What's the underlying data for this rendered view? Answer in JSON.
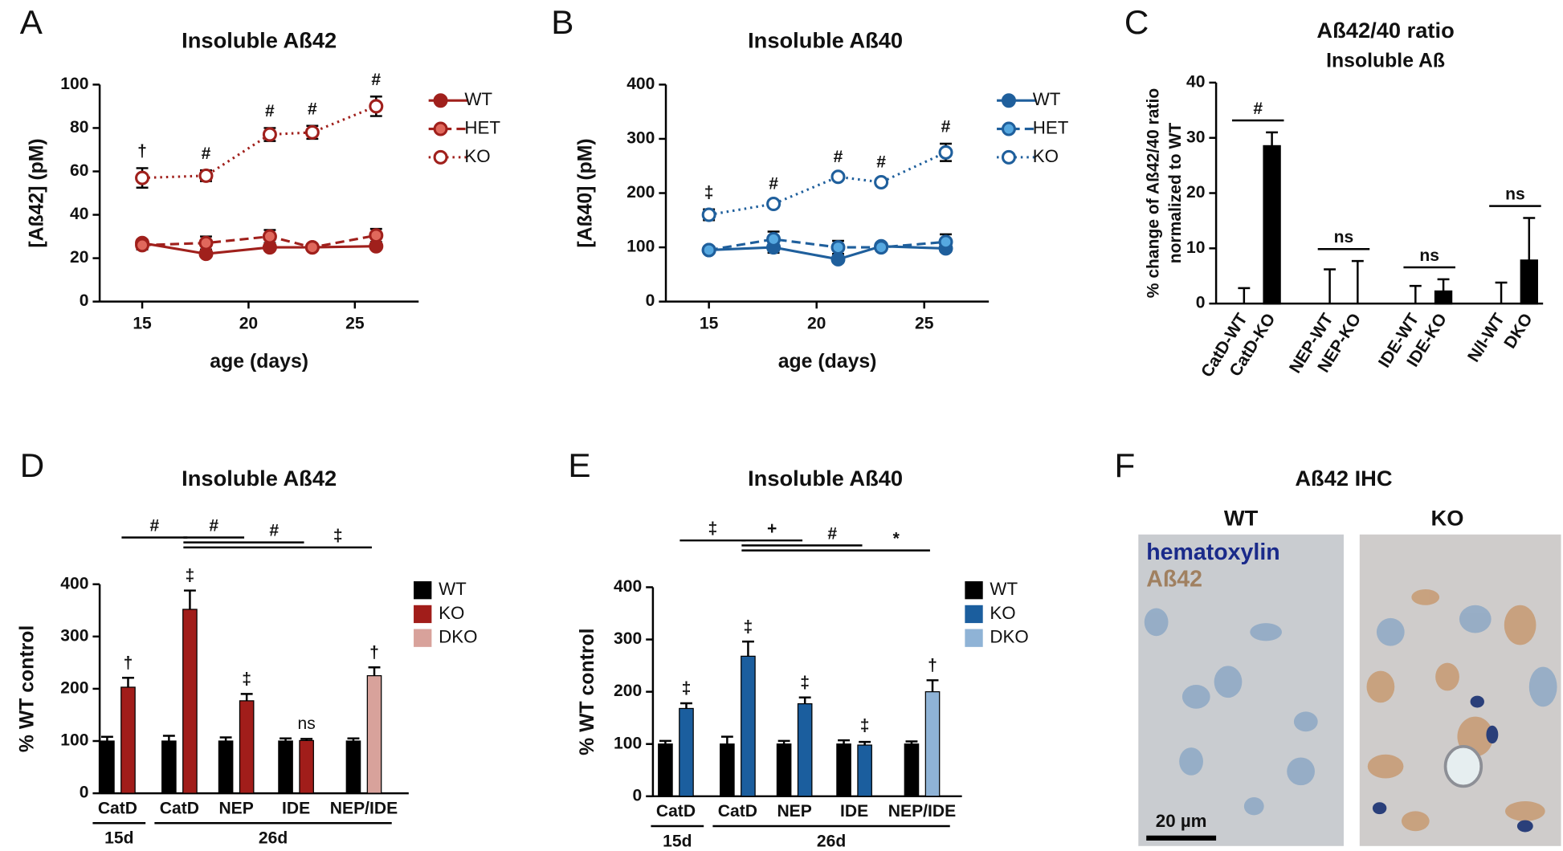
{
  "chart_data": [
    {
      "type": "line",
      "panel": "A",
      "title": "Insoluble Aß42",
      "xlabel": "age (days)",
      "ylabel": "[Aß42] (pM)",
      "x": [
        15,
        18,
        21,
        23,
        26
      ],
      "xlim": [
        13,
        28
      ],
      "xticks": [
        15,
        20,
        25
      ],
      "ylim": [
        0,
        100
      ],
      "yticks": [
        0,
        20,
        40,
        60,
        80,
        100
      ],
      "series": [
        {
          "name": "WT",
          "color": "#a0201c",
          "line_style": "solid",
          "marker_face": "#a0201c",
          "values": [
            27,
            22,
            25,
            25,
            25.5
          ],
          "errors": [
            1.5,
            1,
            1,
            1,
            1
          ]
        },
        {
          "name": "HET",
          "color": "#a0201c",
          "line_style": "dashed",
          "marker_face": "#e0685c",
          "values": [
            26,
            27,
            30,
            25,
            30.5
          ],
          "errors": [
            2,
            3,
            3,
            1.5,
            3
          ]
        },
        {
          "name": "KO",
          "color": "#a0201c",
          "line_style": "dotted",
          "marker_face": "#ffffff",
          "values": [
            57,
            58,
            77,
            78,
            90
          ],
          "errors": [
            4.5,
            2.5,
            3,
            3,
            4.5
          ],
          "point_labels": [
            "†",
            "#",
            "#",
            "#",
            "#"
          ]
        }
      ]
    },
    {
      "type": "line",
      "panel": "B",
      "title": "Insoluble Aß40",
      "xlabel": "age (days)",
      "ylabel": "[Aß40] (pM)",
      "x": [
        15,
        18,
        21,
        23,
        26
      ],
      "xlim": [
        13,
        28
      ],
      "xticks": [
        15,
        20,
        25
      ],
      "ylim": [
        0,
        400
      ],
      "yticks": [
        0,
        100,
        200,
        300,
        400
      ],
      "series": [
        {
          "name": "WT",
          "color": "#1f5f9c",
          "line_style": "solid",
          "marker_face": "#1f5f9c",
          "values": [
            95,
            100,
            78,
            102,
            98
          ],
          "errors": [
            4,
            10,
            6,
            4,
            6
          ]
        },
        {
          "name": "HET",
          "color": "#1f5f9c",
          "line_style": "dashed",
          "marker_face": "#56a8e0",
          "values": [
            95,
            115,
            100,
            100,
            110
          ],
          "errors": [
            6,
            14,
            12,
            6,
            14
          ]
        },
        {
          "name": "KO",
          "color": "#1f5f9c",
          "line_style": "dotted",
          "marker_face": "#ffffff",
          "values": [
            160,
            180,
            230,
            220,
            275
          ],
          "errors": [
            10,
            6,
            6,
            6,
            16
          ],
          "point_labels": [
            "‡",
            "#",
            "#",
            "#",
            "#"
          ]
        }
      ]
    },
    {
      "type": "bar",
      "panel": "C",
      "title": "Aß42/40 ratio",
      "subtitle": "Insoluble Aß",
      "ylabel": [
        "% change of Aß42/40 ratio",
        "normalized to WT"
      ],
      "categories": [
        "CatD-WT",
        "CatD-KO",
        "NEP-WT",
        "NEP-KO",
        "IDE-WT",
        "IDE-KO",
        "N/I-WT",
        "DKO"
      ],
      "values": [
        0,
        28.5,
        0,
        0,
        0,
        2.2,
        0,
        7.8
      ],
      "errors": [
        2.8,
        2.5,
        6.2,
        7.7,
        3.2,
        2.2,
        3.8,
        7.7
      ],
      "colors": [
        "#ffffff",
        "#000000",
        "#ffffff",
        "#000000",
        "#ffffff",
        "#000000",
        "#ffffff",
        "#000000"
      ],
      "ylim": [
        0,
        40
      ],
      "yticks": [
        0,
        10,
        20,
        30,
        40
      ],
      "brackets": [
        {
          "from": 0,
          "to": 1,
          "label": "#"
        },
        {
          "from": 2,
          "to": 3,
          "label": "ns"
        },
        {
          "from": 4,
          "to": 5,
          "label": "ns"
        },
        {
          "from": 6,
          "to": 7,
          "label": "ns"
        }
      ]
    },
    {
      "type": "grouped_bar",
      "panel": "D",
      "title": "Insoluble Aß42",
      "ylabel": "% WT control",
      "categories": [
        "CatD",
        "CatD",
        "NEP",
        "IDE",
        "NEP/IDE"
      ],
      "groups": [
        {
          "label": "15d",
          "from": 0,
          "to": 0
        },
        {
          "label": "26d",
          "from": 1,
          "to": 4
        }
      ],
      "ylim": [
        0,
        400
      ],
      "yticks": [
        0,
        100,
        200,
        300,
        400
      ],
      "series": [
        {
          "name": "WT",
          "color": "#000000",
          "values": [
            100,
            100,
            100,
            100,
            100
          ],
          "errors": [
            8,
            10,
            7,
            5,
            5
          ]
        },
        {
          "name": "KO",
          "color": "#a11d1a",
          "values": [
            203,
            352,
            177,
            101,
            null
          ],
          "errors": [
            18,
            36,
            13,
            3,
            null
          ]
        },
        {
          "name": "DKO",
          "color": "#d8a29b",
          "values": [
            null,
            null,
            null,
            null,
            225
          ],
          "errors": [
            null,
            null,
            null,
            null,
            16
          ]
        }
      ],
      "bar_labels": [
        "†",
        "‡",
        "‡",
        "ns",
        "†"
      ],
      "brackets": [
        {
          "from": 0,
          "to": 1,
          "label": "#"
        },
        {
          "from": 1,
          "to": 2,
          "label": "#"
        },
        {
          "from": 1,
          "to": 3,
          "label": "#"
        },
        {
          "from": 1,
          "to": 4,
          "label": "‡"
        }
      ]
    },
    {
      "type": "grouped_bar",
      "panel": "E",
      "title": "Insoluble Aß40",
      "ylabel": "% WT control",
      "categories": [
        "CatD",
        "CatD",
        "NEP",
        "IDE",
        "NEP/IDE"
      ],
      "groups": [
        {
          "label": "15d",
          "from": 0,
          "to": 0
        },
        {
          "label": "26d",
          "from": 1,
          "to": 4
        }
      ],
      "ylim": [
        0,
        400
      ],
      "yticks": [
        0,
        100,
        200,
        300,
        400
      ],
      "series": [
        {
          "name": "WT",
          "color": "#000000",
          "values": [
            100,
            100,
            100,
            100,
            100
          ],
          "errors": [
            6,
            14,
            6,
            7,
            5
          ]
        },
        {
          "name": "KO",
          "color": "#1b5e9e",
          "values": [
            168,
            268,
            177,
            98,
            null
          ],
          "errors": [
            10,
            28,
            12,
            6,
            null
          ]
        },
        {
          "name": "DKO",
          "color": "#8fb3d6",
          "values": [
            null,
            null,
            null,
            null,
            200
          ],
          "errors": [
            null,
            null,
            null,
            null,
            22
          ]
        }
      ],
      "bar_labels": [
        "‡",
        "‡",
        "‡",
        "‡",
        "†"
      ],
      "brackets": [
        {
          "from": 0,
          "to": 1,
          "label": "‡"
        },
        {
          "from": 1,
          "to": 2,
          "label": "+"
        },
        {
          "from": 1,
          "to": 3,
          "label": "#"
        },
        {
          "from": 1,
          "to": 4,
          "label": "*"
        }
      ]
    }
  ],
  "image_panel": {
    "panel": "F",
    "title": "Aß42 IHC",
    "images": [
      "WT",
      "KO"
    ],
    "stains": [
      "hematoxylin",
      "Aß42"
    ],
    "scale_bar": "20 µm"
  }
}
